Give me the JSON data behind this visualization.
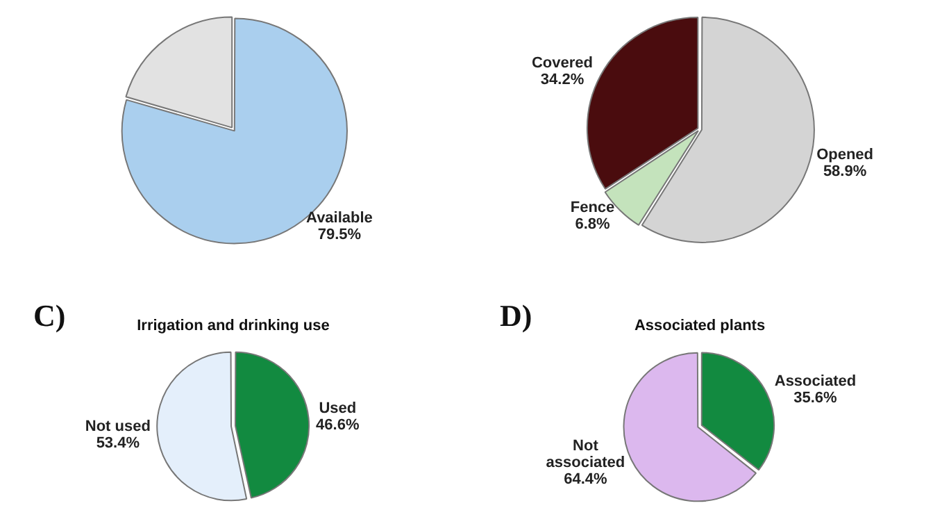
{
  "chart_data": [
    {
      "type": "pie",
      "categories": [
        "Available",
        null
      ],
      "values": [
        79.5,
        20.5
      ],
      "value_labels": [
        "79.5%",
        null
      ],
      "colors": [
        "#aacfee",
        "#e2e2e2"
      ]
    },
    {
      "type": "pie",
      "categories": [
        "Opened",
        "Fence",
        "Covered"
      ],
      "values": [
        58.9,
        6.8,
        34.2
      ],
      "value_labels": [
        "58.9%",
        "6.8%",
        "34.2%"
      ],
      "colors": [
        "#d4d4d4",
        "#c4e3bc",
        "#4a0c0e"
      ]
    },
    {
      "type": "pie",
      "title": "Irrigation and drinking use",
      "annotations": [
        "C)"
      ],
      "categories": [
        "Used",
        "Not used"
      ],
      "values": [
        46.6,
        53.4
      ],
      "value_labels": [
        "46.6%",
        "53.4%"
      ],
      "colors": [
        "#128a40",
        "#e4effb"
      ]
    },
    {
      "type": "pie",
      "title": "Associated plants",
      "annotations": [
        "D)"
      ],
      "categories": [
        "Associated",
        "Not associated"
      ],
      "values": [
        35.6,
        64.4
      ],
      "value_labels": [
        "35.6%",
        "64.4%"
      ],
      "colors": [
        "#128a40",
        "#dcb8ee"
      ]
    }
  ]
}
